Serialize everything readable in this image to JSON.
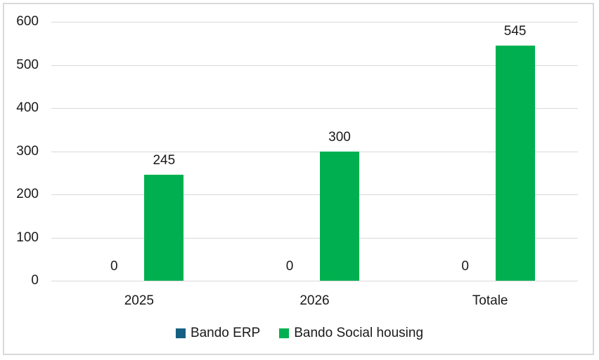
{
  "chart_data": {
    "type": "bar",
    "title": "",
    "xlabel": "",
    "ylabel": "",
    "categories": [
      "2025",
      "2026",
      "Totale"
    ],
    "series": [
      {
        "name": "Bando ERP",
        "color": "#156082",
        "values": [
          0,
          0,
          0
        ],
        "data_labels": [
          "0",
          "0",
          "0"
        ]
      },
      {
        "name": "Bando Social housing",
        "color": "#00B050",
        "values": [
          245,
          300,
          545
        ],
        "data_labels": [
          "245",
          "300",
          "545"
        ]
      }
    ],
    "y_axis": {
      "min": 0,
      "max": 600,
      "step": 100,
      "tick_labels": [
        "0",
        "100",
        "200",
        "300",
        "400",
        "500",
        "600"
      ]
    },
    "grid": true,
    "gridline_color": "#D9D9D9",
    "frame_color": "#D9D9D9",
    "text_color": "#1a1a1a",
    "background_color": "#ffffff",
    "legend_position": "bottom"
  }
}
